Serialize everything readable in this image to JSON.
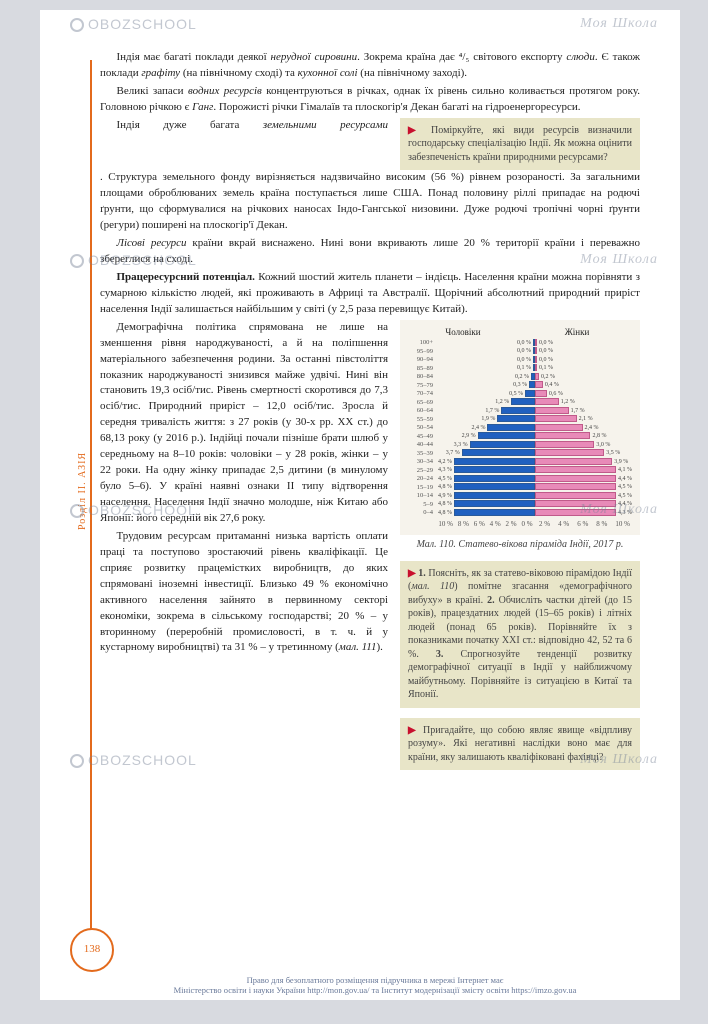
{
  "sidebar_label": "Розділ II. АЗІЯ",
  "page_number": "138",
  "paragraphs": {
    "p1_a": "Індія має багаті поклади деякої ",
    "p1_b": "нерудної сировини",
    "p1_c": ". Зокрема країна дає ⁴/₅ світового експорту ",
    "p1_d": "слюди",
    "p1_e": ". Є також поклади ",
    "p1_f": "графіту",
    "p1_g": " (на північному сході) та ",
    "p1_h": "кухонної солі",
    "p1_i": " (на північному заході).",
    "p2_a": "Великі запаси ",
    "p2_b": "водних ресурсів",
    "p2_c": " концентруються в річках, однак їх рівень сильно коливається протягом року. Головною річкою є ",
    "p2_d": "Ганг",
    "p2_e": ". Порожисті річки Гімалаїв та плоскогір'я Декан багаті на гідроенергоресурси.",
    "p3_a": "Індія дуже багата ",
    "p3_b": "земельними ресурсами",
    "p3_c": ". Структура земельного фонду вирізняється надзвичайно високим (56 %) рівнем розораності. За загальними площами оброблюваних земель країна поступається лише США. Понад половину ріллі припадає на родючі ґрунти, що сформувалися на річкових наносах Індо-Гангської низовини. Дуже родючі тропічні чорні ґрунти (регури) поширені на плоскогір'ї Декан.",
    "p4_a": "Лісові ресурси",
    "p4_b": " країни вкрай виснажено. Нині вони вкривають лише 20 % території країни і переважно збереглися на сході.",
    "p5_a": "Працересурсний потенціал.",
    "p5_b": " Кожний шостий житель планети – індієць. Населення країни можна порівняти з сумарною кількістю людей, які проживають в Африці та Австралії. Щорічний абсолютний природний приріст населення Індії залишається найбільшим у світі (у 2,5 раза перевищує Китай).",
    "p6": "Демографічна політика спрямована не лише на зменшення рівня народжуваності, а й на поліпшення матеріального забезпечення родини. За останні півстоліття показник народжуваності знизився майже удвічі. Нині він становить 19,3 осіб/тис. Рівень смертності скоротився до 7,3 осіб/тис. Природний приріст – 12,0 осіб/тис. Зросла й середня тривалість життя: з 27 років (у 30-х рр. ХХ ст.) до 68,13 року (у 2016 р.). Індійці почали пізніше брати шлюб у середньому на 8–10 років: чоловіки – у 28 років, жінки – у 22 роки. На одну жінку припадає 2,5 дитини (в минулому було 5–6). У країні наявні ознаки ІІ типу відтворення населення. Населення Індії значно молодше, ніж Китаю або Японії: його середній вік 27,6 року.",
    "p7_a": "Трудовим ресурсам притаманні низька вартість оплати праці та поступово зростаючий рівень кваліфікації. Це сприяє розвитку працемістких виробництв, до яких спрямовані іноземні інвестиції. Близько 49 % економічно активного населення зайнято в первинному секторі економіки, зокрема в сільському господарстві; 20 % – у вторинному (переробній промисловості, в т. ч. й у кустарному виробництві) та 31 % – у третинному (",
    "p7_b": "мал. 111",
    "p7_c": ")."
  },
  "callout1": {
    "marker": "▶",
    "text": "Поміркуйте, які види ресурсів визначили господарську спеціалізацію Індії. Як можна оцінити забезпеченість країни природними ресурсами?"
  },
  "callout2": {
    "marker": "▶",
    "l1a": "1.",
    "l1": " Поясніть, як за статево-віковою пірамідою Індії (",
    "l1m": "мал. 110",
    "l1b": ") помітне згасання «демографічного вибуху» в країні. ",
    "l2a": "2.",
    "l2": " Обчисліть частки дітей (до 15 років), працездатних людей (15–65 років) і літніх людей (понад 65 років). Порівняйте їх з показниками початку ХХІ ст.: відповідно 42, 52 та 6 %. ",
    "l3a": "3.",
    "l3": " Спрогнозуйте тенденції розвитку демографічної ситуації в Індії у найближчому майбутньому. Порівняйте із ситуацією в Китаї та Японії."
  },
  "callout3": {
    "marker": "▶",
    "text": "Пригадайте, що собою являє явище «відпливу розуму». Які негативні наслідки воно має для країни, яку залишають кваліфіковані фахівці?"
  },
  "pyramid": {
    "title_m": "Чоловіки",
    "title_f": "Жінки",
    "caption": "Мал. 110. Статево-вікова піраміда Індії, 2017 р.",
    "max_pct": 5.0,
    "colors": {
      "male": "#2060c0",
      "female": "#e88ab8",
      "bg": "#f6f3ec"
    },
    "xticks_left": [
      "10 %",
      "8 %",
      "6 %",
      "4 %",
      "2 %",
      "0 %"
    ],
    "xticks_right": [
      "2 %",
      "4 %",
      "6 %",
      "8 %",
      "10 %"
    ],
    "rows": [
      {
        "age": "100+",
        "m": 0.0,
        "f": 0.0,
        "ml": "0,0 %",
        "fl": "0,0 %"
      },
      {
        "age": "95–99",
        "m": 0.0,
        "f": 0.0,
        "ml": "0,0 %",
        "fl": "0,0 %"
      },
      {
        "age": "90–94",
        "m": 0.0,
        "f": 0.0,
        "ml": "0,0 %",
        "fl": "0,0 %"
      },
      {
        "age": "85–89",
        "m": 0.1,
        "f": 0.1,
        "ml": "0,1 %",
        "fl": "0,1 %"
      },
      {
        "age": "80–84",
        "m": 0.2,
        "f": 0.2,
        "ml": "0,2 %",
        "fl": "0,2 %"
      },
      {
        "age": "75–79",
        "m": 0.3,
        "f": 0.4,
        "ml": "0,3 %",
        "fl": "0,4 %"
      },
      {
        "age": "70–74",
        "m": 0.5,
        "f": 0.6,
        "ml": "0,5 %",
        "fl": "0,6 %"
      },
      {
        "age": "65–69",
        "m": 1.2,
        "f": 1.2,
        "ml": "1,2 %",
        "fl": "1,2 %"
      },
      {
        "age": "60–64",
        "m": 1.7,
        "f": 1.7,
        "ml": "1,7 %",
        "fl": "1,7 %"
      },
      {
        "age": "55–59",
        "m": 1.9,
        "f": 2.1,
        "ml": "1,9 %",
        "fl": "2,1 %"
      },
      {
        "age": "50–54",
        "m": 2.4,
        "f": 2.4,
        "ml": "2,4 %",
        "fl": "2,4 %"
      },
      {
        "age": "45–49",
        "m": 2.9,
        "f": 2.8,
        "ml": "2,9 %",
        "fl": "2,8 %"
      },
      {
        "age": "40–44",
        "m": 3.3,
        "f": 3.0,
        "ml": "3,3 %",
        "fl": "3,0 %"
      },
      {
        "age": "35–39",
        "m": 3.7,
        "f": 3.5,
        "ml": "3,7 %",
        "fl": "3,5 %"
      },
      {
        "age": "30–34",
        "m": 4.2,
        "f": 3.9,
        "ml": "4,2 %",
        "fl": "3,9 %"
      },
      {
        "age": "25–29",
        "m": 4.3,
        "f": 4.1,
        "ml": "4,3 %",
        "fl": "4,1 %"
      },
      {
        "age": "20–24",
        "m": 4.5,
        "f": 4.4,
        "ml": "4,5 %",
        "fl": "4,4 %"
      },
      {
        "age": "15–19",
        "m": 4.8,
        "f": 4.5,
        "ml": "4,8 %",
        "fl": "4,5 %"
      },
      {
        "age": "10–14",
        "m": 4.9,
        "f": 4.5,
        "ml": "4,9 %",
        "fl": "4,5 %"
      },
      {
        "age": "5–9",
        "m": 4.8,
        "f": 4.4,
        "ml": "4,8 %",
        "fl": "4,4 %"
      },
      {
        "age": "0–4",
        "m": 4.8,
        "f": 4.3,
        "ml": "4,8 %",
        "fl": "4,3 %"
      }
    ]
  },
  "footer": {
    "l1": "Право для безоплатного розміщення підручника в мережі Інтернет має",
    "l2": "Міністерство освіти і науки України http://mon.gov.ua/ та Інститут модернізації змісту освіти https://imzo.gov.ua"
  },
  "watermarks": {
    "label": "OBOZSCHOOL",
    "brand": "Моя Школа"
  }
}
